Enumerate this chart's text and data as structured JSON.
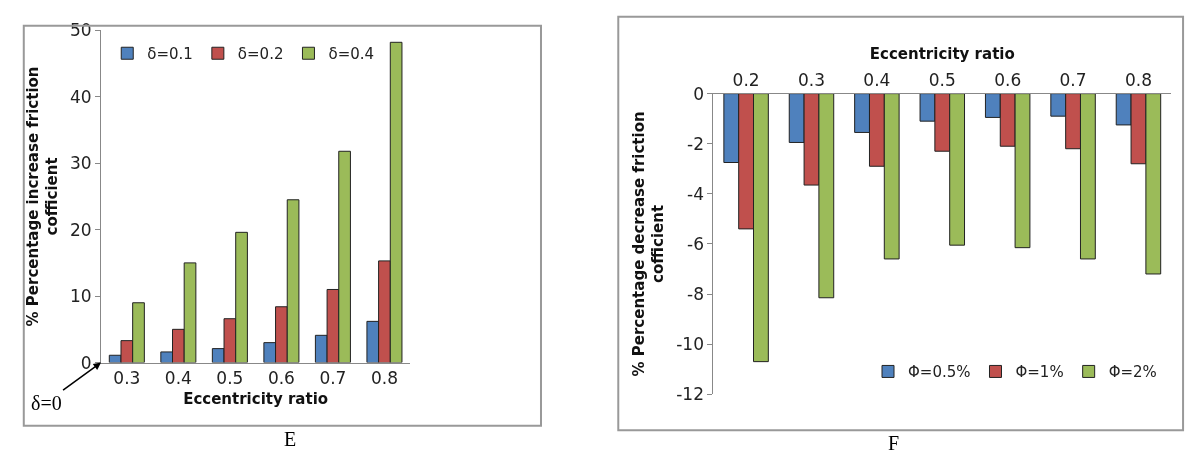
{
  "chart_data": [
    {
      "type": "bar",
      "xlabel": "Eccentricity ratio",
      "ylabel": "% Percentage increase friction\ncofficient",
      "categories": [
        "0.3",
        "0.4",
        "0.5",
        "0.6",
        "0.7",
        "0.8"
      ],
      "series": [
        {
          "name": "δ=0.1",
          "color": "#4f81bd",
          "values": [
            1.1,
            1.6,
            2.1,
            3.0,
            4.1,
            6.2
          ]
        },
        {
          "name": "δ=0.2",
          "color": "#c0504d",
          "values": [
            3.3,
            5.0,
            6.6,
            8.4,
            11.0,
            15.3
          ]
        },
        {
          "name": "δ=0.4",
          "color": "#9bbb59",
          "values": [
            9.0,
            15.0,
            19.6,
            24.5,
            31.8,
            48.2
          ]
        }
      ],
      "ylim": [
        0,
        50
      ],
      "yticks": [
        0,
        10,
        20,
        30,
        40,
        50
      ],
      "legend": "top left",
      "annotations": [
        "δ=0",
        "E"
      ]
    },
    {
      "type": "bar",
      "x2label": "Eccentricity ratio",
      "ylabel": "% Percentage decrease friction\ncofficient",
      "categories": [
        "0.2",
        "0.3",
        "0.4",
        "0.5",
        "0.6",
        "0.7",
        "0.8"
      ],
      "series": [
        {
          "name": "Φ=0.5%",
          "color": "#4f81bd",
          "values": [
            -2.75,
            -1.95,
            -1.55,
            -1.1,
            -0.95,
            -0.9,
            -1.25
          ]
        },
        {
          "name": "Φ=1%",
          "color": "#c0504d",
          "values": [
            -5.4,
            -3.65,
            -2.9,
            -2.3,
            -2.1,
            -2.2,
            -2.8
          ]
        },
        {
          "name": "Φ=2%",
          "color": "#9bbb59",
          "values": [
            -10.7,
            -8.15,
            -6.6,
            -6.05,
            -6.15,
            -6.6,
            -7.2
          ]
        }
      ],
      "ylim": [
        -12,
        0
      ],
      "yticks": [
        -12,
        -10,
        -8,
        -6,
        -4,
        -2,
        0
      ],
      "legend": "bottom right",
      "annotations": [
        "F"
      ]
    }
  ]
}
